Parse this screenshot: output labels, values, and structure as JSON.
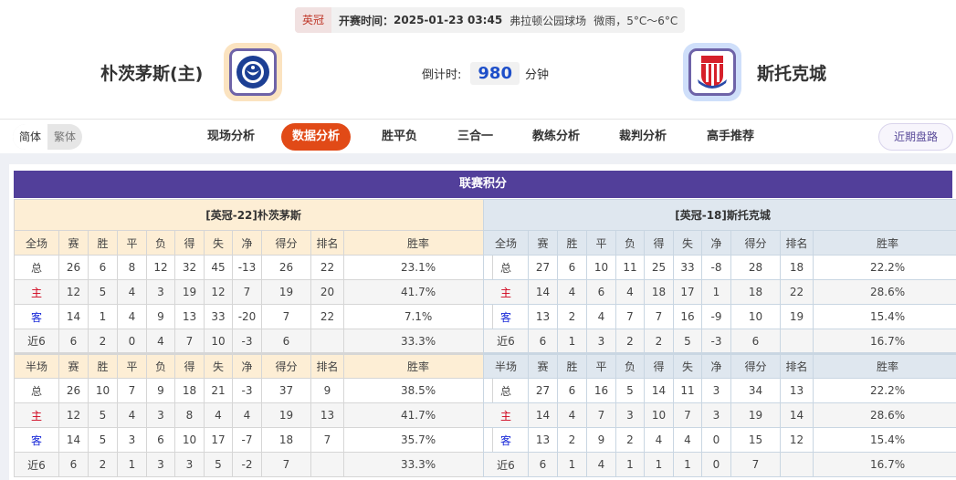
{
  "match": {
    "league": "英冠",
    "kickoff_label": "开赛时间：",
    "kickoff": "2025-01-23 03:45",
    "venue": "弗拉顿公园球场",
    "weather": "微雨，5°C～6°C"
  },
  "home": {
    "name": "朴茨茅斯(主)",
    "logo_text": "PORTSMOUTH"
  },
  "away": {
    "name": "斯托克城",
    "logo_text": "STOKE CITY"
  },
  "countdown": {
    "label": "倒计时:",
    "value": "980",
    "unit": "分钟"
  },
  "nav": {
    "lang": [
      "简体",
      "繁体"
    ],
    "tabs": [
      "现场分析",
      "数据分析",
      "胜平负",
      "三合一",
      "教练分析",
      "裁判分析",
      "高手推荐"
    ],
    "active": 1,
    "recent": "近期盘路"
  },
  "standings": {
    "title": "联赛积分",
    "cols_full": [
      "全场",
      "赛",
      "胜",
      "平",
      "负",
      "得",
      "失",
      "净",
      "得分",
      "排名",
      "胜率"
    ],
    "cols_half": [
      "半场",
      "赛",
      "胜",
      "平",
      "负",
      "得",
      "失",
      "净",
      "得分",
      "排名",
      "胜率"
    ],
    "home": {
      "header": "[英冠-22]朴茨茅斯",
      "full": [
        [
          "总",
          "26",
          "6",
          "8",
          "12",
          "32",
          "45",
          "-13",
          "26",
          "22",
          "23.1%"
        ],
        [
          "主",
          "12",
          "5",
          "4",
          "3",
          "19",
          "12",
          "7",
          "19",
          "20",
          "41.7%"
        ],
        [
          "客",
          "14",
          "1",
          "4",
          "9",
          "13",
          "33",
          "-20",
          "7",
          "22",
          "7.1%"
        ],
        [
          "近6",
          "6",
          "2",
          "0",
          "4",
          "7",
          "10",
          "-3",
          "6",
          "",
          "33.3%"
        ]
      ],
      "half": [
        [
          "总",
          "26",
          "10",
          "7",
          "9",
          "18",
          "21",
          "-3",
          "37",
          "9",
          "38.5%"
        ],
        [
          "主",
          "12",
          "5",
          "4",
          "3",
          "8",
          "4",
          "4",
          "19",
          "13",
          "41.7%"
        ],
        [
          "客",
          "14",
          "5",
          "3",
          "6",
          "10",
          "17",
          "-7",
          "18",
          "7",
          "35.7%"
        ],
        [
          "近6",
          "6",
          "2",
          "1",
          "3",
          "3",
          "5",
          "-2",
          "7",
          "",
          "33.3%"
        ]
      ]
    },
    "away": {
      "header": "[英冠-18]斯托克城",
      "full": [
        [
          "总",
          "27",
          "6",
          "10",
          "11",
          "25",
          "33",
          "-8",
          "28",
          "18",
          "22.2%"
        ],
        [
          "主",
          "14",
          "4",
          "6",
          "4",
          "18",
          "17",
          "1",
          "18",
          "22",
          "28.6%"
        ],
        [
          "客",
          "13",
          "2",
          "4",
          "7",
          "7",
          "16",
          "-9",
          "10",
          "19",
          "15.4%"
        ],
        [
          "近6",
          "6",
          "1",
          "3",
          "2",
          "2",
          "5",
          "-3",
          "6",
          "",
          "16.7%"
        ]
      ],
      "half": [
        [
          "总",
          "27",
          "6",
          "16",
          "5",
          "14",
          "11",
          "3",
          "34",
          "13",
          "22.2%"
        ],
        [
          "主",
          "14",
          "4",
          "7",
          "3",
          "10",
          "7",
          "3",
          "19",
          "14",
          "28.6%"
        ],
        [
          "客",
          "13",
          "2",
          "9",
          "2",
          "4",
          "4",
          "0",
          "15",
          "12",
          "15.4%"
        ],
        [
          "近6",
          "6",
          "1",
          "4",
          "1",
          "1",
          "1",
          "0",
          "7",
          "",
          "16.7%"
        ]
      ]
    }
  }
}
